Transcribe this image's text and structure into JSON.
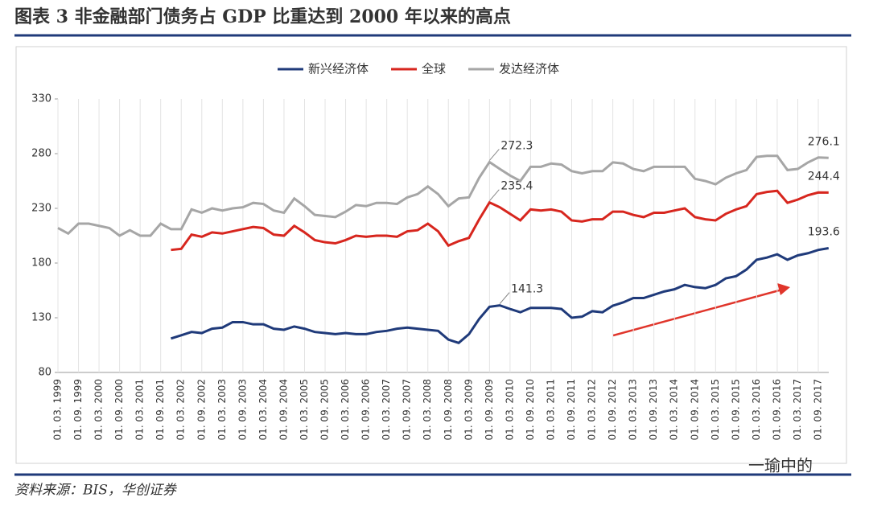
{
  "chart_data": {
    "type": "line",
    "title": "图表 3   非金融部门债务占 GDP 比重达到 2000 年以来的高点",
    "source": "资料来源：BIS，华创证券",
    "watermark": "一瑜中的",
    "categories": [
      "01. 03. 1999",
      null,
      "01. 09. 1999",
      null,
      "01. 03. 2000",
      null,
      "01. 09. 2000",
      null,
      "01. 03. 2001",
      null,
      "01. 09. 2001",
      null,
      "01. 03. 2002",
      null,
      "01. 09. 2002",
      null,
      "01. 03. 2003",
      null,
      "01. 09. 2003",
      null,
      "01. 03. 2004",
      null,
      "01. 09. 2004",
      null,
      "01. 03. 2005",
      null,
      "01. 09. 2005",
      null,
      "01. 03. 2006",
      null,
      "01. 09. 2006",
      null,
      "01. 03. 2007",
      null,
      "01. 09. 2007",
      null,
      "01. 03. 2008",
      null,
      "01. 09. 2008",
      null,
      "01. 03. 2009",
      null,
      "01. 09. 2009",
      null,
      "01. 03. 2010",
      null,
      "01. 09. 2010",
      null,
      "01. 03. 2011",
      null,
      "01. 09. 2011",
      null,
      "01. 03. 2012",
      null,
      "01. 09. 2012",
      null,
      "01. 03. 2013",
      null,
      "01. 09. 2013",
      null,
      "01. 03. 2014",
      null,
      "01. 09. 2014",
      null,
      "01. 03. 2015",
      null,
      "01. 09. 2015",
      null,
      "01. 03. 2016",
      null,
      "01. 09. 2016",
      null,
      "01. 03. 2017",
      null,
      "01. 09. 2017",
      null
    ],
    "series": [
      {
        "name": "新兴经济体",
        "color": "#1f3a7a",
        "values": [
          null,
          null,
          null,
          null,
          null,
          null,
          null,
          null,
          null,
          null,
          null,
          111,
          114,
          117,
          116,
          120,
          121,
          126,
          126,
          124,
          124,
          120,
          119,
          122,
          120,
          117,
          116,
          115,
          116,
          115,
          115,
          117,
          118,
          120,
          121,
          120,
          119,
          118,
          110,
          107,
          115,
          129,
          140,
          141.3,
          138,
          135,
          139,
          139,
          139,
          138,
          130,
          131,
          136,
          135,
          141,
          144,
          148,
          148,
          151,
          154,
          156,
          160,
          158,
          157,
          160,
          166,
          168,
          174,
          183,
          185,
          188,
          183,
          187,
          189,
          192,
          193.6
        ],
        "value_labels": [
          null,
          null,
          null,
          null,
          null,
          null,
          null,
          null,
          null,
          null,
          null,
          null,
          null,
          null,
          null,
          null,
          null,
          null,
          null,
          null,
          null,
          null,
          null,
          null,
          null,
          null,
          null,
          null,
          null,
          null,
          null,
          null,
          null,
          null,
          null,
          null,
          null,
          null,
          null,
          null,
          null,
          null,
          null,
          "141.3",
          null,
          null,
          null,
          null,
          null,
          null,
          null,
          null,
          null,
          null,
          null,
          null,
          null,
          null,
          null,
          null,
          null,
          null,
          null,
          null,
          null,
          null,
          null,
          null,
          null,
          null,
          null,
          null,
          null,
          null,
          null,
          "193.6"
        ]
      },
      {
        "name": "全球",
        "color": "#d7261e",
        "values": [
          null,
          null,
          null,
          null,
          null,
          null,
          null,
          null,
          null,
          null,
          null,
          192,
          193,
          206,
          204,
          208,
          207,
          209,
          211,
          213,
          212,
          206,
          205,
          214,
          208,
          201,
          199,
          198,
          201,
          205,
          204,
          205,
          205,
          204,
          209,
          210,
          216,
          209,
          196,
          200,
          203,
          220,
          235.4,
          231,
          225,
          219,
          229,
          228,
          229,
          227,
          219,
          218,
          220,
          220,
          227,
          227,
          224,
          222,
          226,
          226,
          228,
          230,
          222,
          220,
          219,
          225,
          229,
          232,
          243,
          245,
          246,
          235,
          238,
          242,
          244.5,
          244.4
        ],
        "value_labels": [
          null,
          null,
          null,
          null,
          null,
          null,
          null,
          null,
          null,
          null,
          null,
          null,
          null,
          null,
          null,
          null,
          null,
          null,
          null,
          null,
          null,
          null,
          null,
          null,
          null,
          null,
          null,
          null,
          null,
          null,
          null,
          null,
          null,
          null,
          null,
          null,
          null,
          null,
          null,
          null,
          null,
          null,
          "235.4",
          null,
          null,
          null,
          null,
          null,
          null,
          null,
          null,
          null,
          null,
          null,
          null,
          null,
          null,
          null,
          null,
          null,
          null,
          null,
          null,
          null,
          null,
          null,
          null,
          null,
          null,
          null,
          null,
          null,
          null,
          null,
          null,
          "244.4"
        ]
      },
      {
        "name": "发达经济体",
        "color": "#a6a6a6",
        "values": [
          212,
          207,
          216,
          216,
          214,
          212,
          205,
          210,
          205,
          205,
          216,
          211,
          211,
          229,
          226,
          230,
          228,
          230,
          231,
          235,
          234,
          228,
          226,
          239,
          232,
          224,
          223,
          222,
          227,
          233,
          232,
          235,
          235,
          234,
          240,
          243,
          250,
          243,
          232,
          239,
          240,
          258,
          272.3,
          266,
          260,
          255,
          268,
          268,
          271,
          270,
          264,
          262,
          264,
          264,
          272,
          271,
          266,
          264,
          268,
          268,
          268,
          268,
          257,
          255,
          252,
          258,
          262,
          265,
          277,
          278,
          278,
          265,
          266,
          272,
          276.5,
          276.1
        ],
        "value_labels": [
          null,
          null,
          null,
          null,
          null,
          null,
          null,
          null,
          null,
          null,
          null,
          null,
          null,
          null,
          null,
          null,
          null,
          null,
          null,
          null,
          null,
          null,
          null,
          null,
          null,
          null,
          null,
          null,
          null,
          null,
          null,
          null,
          null,
          null,
          null,
          null,
          null,
          null,
          null,
          null,
          null,
          null,
          "272.3",
          null,
          null,
          null,
          null,
          null,
          null,
          null,
          null,
          null,
          null,
          null,
          null,
          null,
          null,
          null,
          null,
          null,
          null,
          null,
          null,
          null,
          null,
          null,
          null,
          null,
          null,
          null,
          null,
          null,
          null,
          null,
          null,
          "276.1"
        ]
      }
    ],
    "ylim": [
      80,
      330
    ],
    "yticks": [
      80,
      130,
      180,
      230,
      280,
      330
    ],
    "grid": true,
    "legend": "top"
  }
}
